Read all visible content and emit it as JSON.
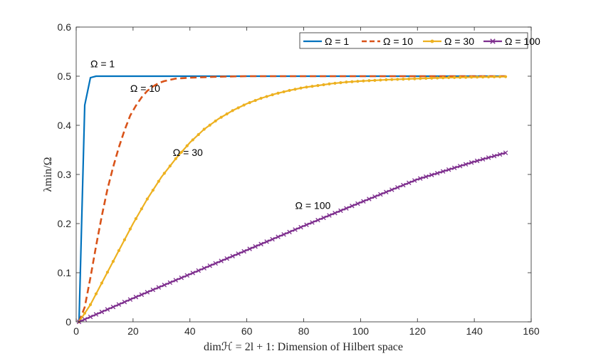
{
  "chart_data": {
    "type": "line",
    "title": "",
    "xlabel": "dimℋ = 2l + 1: Dimension of Hilbert space",
    "ylabel": "λmin/Ω",
    "xlim": [
      0,
      160
    ],
    "ylim": [
      0,
      0.6
    ],
    "xticks": [
      "0",
      "20",
      "40",
      "60",
      "80",
      "100",
      "120",
      "140",
      "160"
    ],
    "yticks": [
      "0",
      "0.1",
      "0.2",
      "0.3",
      "0.4",
      "0.5",
      "0.6"
    ],
    "grid": false,
    "legend_position": "top-right",
    "series": [
      {
        "name": "Ω = 1",
        "color": "#0072BD",
        "style": "solid",
        "marker": "none",
        "x": [
          1,
          3,
          5,
          7,
          10,
          20,
          40,
          60,
          80,
          100,
          120,
          140,
          151
        ],
        "y": [
          0,
          0.441,
          0.497,
          0.5,
          0.5,
          0.5,
          0.5,
          0.5,
          0.5,
          0.5,
          0.5,
          0.5,
          0.5
        ]
      },
      {
        "name": "Ω = 10",
        "color": "#D95319",
        "style": "dashed",
        "marker": "none",
        "x": [
          1,
          3,
          5,
          7,
          9,
          11,
          13,
          15,
          17,
          19,
          21,
          23,
          25,
          27,
          29,
          31,
          35,
          40,
          45,
          50,
          60,
          80,
          100,
          120,
          151
        ],
        "y": [
          0,
          0.03,
          0.09,
          0.155,
          0.215,
          0.27,
          0.315,
          0.355,
          0.39,
          0.42,
          0.44,
          0.457,
          0.47,
          0.479,
          0.486,
          0.49,
          0.495,
          0.497,
          0.498,
          0.499,
          0.5,
          0.5,
          0.5,
          0.5,
          0.5
        ]
      },
      {
        "name": "Ω = 30",
        "color": "#EDB120",
        "style": "solid",
        "marker": "dot",
        "x": [
          1,
          5,
          10,
          15,
          20,
          25,
          30,
          35,
          40,
          45,
          50,
          55,
          60,
          65,
          70,
          75,
          80,
          85,
          90,
          95,
          100,
          110,
          120,
          130,
          140,
          151
        ],
        "y": [
          0,
          0.035,
          0.09,
          0.145,
          0.2,
          0.25,
          0.295,
          0.332,
          0.365,
          0.392,
          0.413,
          0.43,
          0.444,
          0.455,
          0.464,
          0.471,
          0.477,
          0.481,
          0.485,
          0.488,
          0.49,
          0.493,
          0.495,
          0.497,
          0.498,
          0.499
        ]
      },
      {
        "name": "Ω = 100",
        "color": "#7E2F8E",
        "style": "solid",
        "marker": "x",
        "x": [
          1,
          20,
          40,
          60,
          80,
          100,
          120,
          140,
          151
        ],
        "y": [
          0,
          0.048,
          0.097,
          0.146,
          0.195,
          0.243,
          0.29,
          0.326,
          0.344
        ]
      }
    ],
    "annotations": [
      {
        "text": "Ω = 1",
        "x": 5,
        "y": 0.518
      },
      {
        "text": "Ω = 10",
        "x": 19,
        "y": 0.468
      },
      {
        "text": "Ω = 30",
        "x": 34,
        "y": 0.338
      },
      {
        "text": "Ω = 100",
        "x": 77,
        "y": 0.23
      }
    ]
  }
}
